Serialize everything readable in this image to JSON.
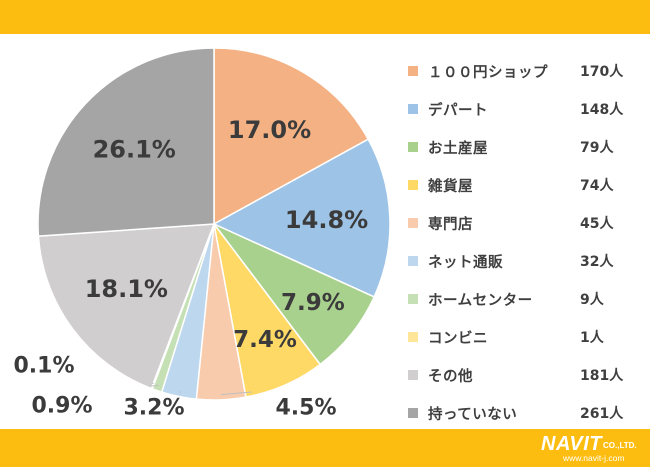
{
  "chart_data": {
    "type": "pie",
    "start_angle_deg": 0,
    "direction": "clockwise",
    "legend_position": "right",
    "slices": [
      {
        "label": "１００円ショップ",
        "count": "170人",
        "percent": 17.0,
        "percent_label": "17.0%",
        "color": "#f4b183"
      },
      {
        "label": "デパート",
        "count": "148人",
        "percent": 14.8,
        "percent_label": "14.8%",
        "color": "#9dc3e6"
      },
      {
        "label": "お土産屋",
        "count": "79人",
        "percent": 7.9,
        "percent_label": "7.9%",
        "color": "#a9d18e"
      },
      {
        "label": "雑貨屋",
        "count": "74人",
        "percent": 7.4,
        "percent_label": "7.4%",
        "color": "#ffd966"
      },
      {
        "label": "専門店",
        "count": "45人",
        "percent": 4.5,
        "percent_label": "4.5%",
        "color": "#f8cbad"
      },
      {
        "label": "ネット通販",
        "count": "32人",
        "percent": 3.2,
        "percent_label": "3.2%",
        "color": "#bdd7ee"
      },
      {
        "label": "ホームセンター",
        "count": "9人",
        "percent": 0.9,
        "percent_label": "0.9%",
        "color": "#c5e0b4"
      },
      {
        "label": "コンビニ",
        "count": "1人",
        "percent": 0.1,
        "percent_label": "0.1%",
        "color": "#ffe699"
      },
      {
        "label": "その他",
        "count": "181人",
        "percent": 18.1,
        "percent_label": "18.1%",
        "color": "#d0cece"
      },
      {
        "label": "持っていない",
        "count": "261人",
        "percent": 26.1,
        "percent_label": "26.1%",
        "color": "#a5a5a5"
      }
    ]
  },
  "branding": {
    "logo_text": "NAVIT",
    "logo_suffix": "CO.,LTD.",
    "url": "www.navit-j.com"
  }
}
